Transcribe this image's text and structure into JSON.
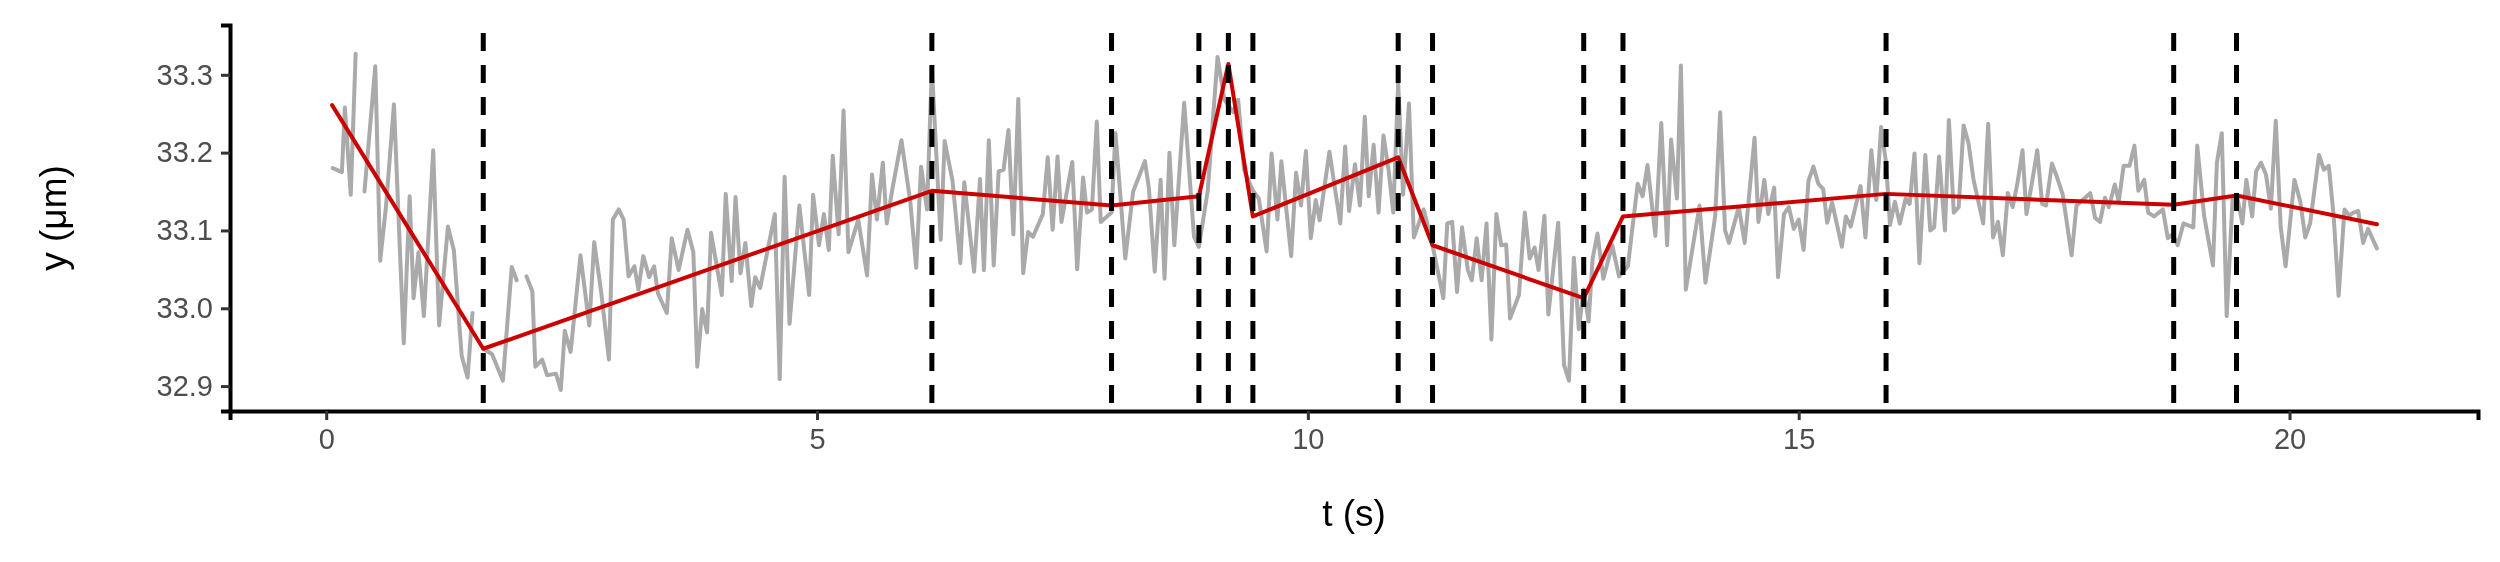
{
  "chart_data": {
    "type": "line",
    "xlabel": "t (s)",
    "ylabel": "y (μm)",
    "xlim": [
      -0.98,
      21.92
    ],
    "xticks": [
      0,
      5,
      10,
      15,
      20
    ],
    "ylim": [
      32.868,
      33.364
    ],
    "yticks": [
      {
        "value": 32.9,
        "label": "32.9"
      },
      {
        "value": 33.0,
        "label": "33.0"
      },
      {
        "value": 33.1,
        "label": "33.1"
      },
      {
        "value": 33.2,
        "label": "33.2"
      },
      {
        "value": 33.3,
        "label": "33.3"
      }
    ],
    "series": [
      {
        "color": "#aaaaaa",
        "x": [
          0.067,
          0.16,
          0.19,
          0.25,
          0.3,
          0.345,
          0.39,
          0.5,
          0.55,
          0.61,
          0.69,
          0.79,
          0.85,
          0.89,
          0.94,
          0.995,
          1.09,
          1.15,
          1.24,
          1.3,
          1.38,
          1.44,
          1.49,
          1.545,
          1.6,
          1.69,
          1.8,
          1.89,
          1.94,
          1.99,
          2.04,
          2.1,
          2.13,
          2.2,
          2.25,
          2.34,
          2.39,
          2.43,
          2.49,
          2.59,
          2.68,
          2.73,
          2.8,
          2.88,
          2.92,
          2.98,
          3.03,
          3.08,
          3.14,
          3.18,
          3.23,
          3.29,
          3.34,
          3.38,
          3.47,
          3.52,
          3.59,
          3.68,
          3.74,
          3.78,
          3.83,
          3.88,
          3.92,
          4.03,
          4.07,
          4.13,
          4.17,
          4.22,
          4.27,
          4.33,
          4.37,
          4.42,
          4.57,
          4.62,
          4.67,
          4.72,
          4.82,
          4.92,
          4.96,
          5.02,
          5.07,
          5.12,
          5.16,
          5.22,
          5.27,
          5.32,
          5.42,
          5.51,
          5.56,
          5.61,
          5.67,
          5.71,
          5.77,
          5.86,
          5.95,
          6.01,
          6.06,
          6.12,
          6.17,
          6.26,
          6.3,
          6.38,
          6.46,
          6.5,
          6.6,
          6.66,
          6.7,
          6.75,
          6.8,
          6.85,
          6.9,
          6.95,
          7.0,
          7.05,
          7.1,
          7.15,
          7.2,
          7.3,
          7.35,
          7.4,
          7.45,
          7.49,
          7.6,
          7.65,
          7.71,
          7.75,
          7.8,
          7.85,
          7.89,
          8.0,
          8.04,
          8.14,
          8.22,
          8.34,
          8.38,
          8.44,
          8.5,
          8.54,
          8.59,
          8.64,
          8.74,
          8.84,
          8.89,
          8.98,
          9.08,
          9.15,
          9.24,
          9.29,
          9.35,
          9.44,
          9.5,
          9.58,
          9.63,
          9.69,
          9.73,
          9.83,
          9.88,
          9.93,
          9.98,
          10.03,
          10.08,
          10.12,
          10.22,
          10.33,
          10.38,
          10.42,
          10.48,
          10.53,
          10.58,
          10.62,
          10.67,
          10.72,
          10.77,
          10.82,
          10.87,
          10.92,
          10.97,
          11.03,
          11.08,
          11.18,
          11.27,
          11.38,
          11.42,
          11.47,
          11.52,
          11.57,
          11.63,
          11.67,
          11.72,
          11.77,
          11.82,
          11.87,
          11.92,
          11.97,
          12.02,
          12.06,
          12.15,
          12.21,
          12.26,
          12.31,
          12.35,
          12.41,
          12.45,
          12.55,
          12.61,
          12.66,
          12.71,
          12.76,
          12.81,
          12.86,
          12.9,
          12.95,
          13.01,
          13.1,
          13.17,
          13.26,
          13.36,
          13.41,
          13.46,
          13.54,
          13.6,
          13.66,
          13.7,
          13.76,
          13.8,
          13.85,
          13.99,
          14.05,
          14.15,
          14.2,
          14.25,
          14.29,
          14.39,
          14.45,
          14.55,
          14.59,
          14.65,
          14.69,
          14.75,
          14.79,
          14.85,
          14.9,
          14.95,
          15.0,
          15.05,
          15.1,
          15.15,
          15.2,
          15.25,
          15.29,
          15.34,
          15.44,
          15.48,
          15.53,
          15.63,
          15.68,
          15.74,
          15.79,
          15.84,
          15.89,
          15.93,
          15.98,
          16.03,
          16.09,
          16.13,
          16.18,
          16.23,
          16.29,
          16.34,
          16.38,
          16.43,
          16.49,
          16.53,
          16.58,
          16.63,
          16.68,
          16.73,
          16.78,
          16.88,
          16.93,
          16.98,
          17.03,
          17.08,
          17.13,
          17.18,
          17.23,
          17.28,
          17.32,
          17.38,
          17.43,
          17.48,
          17.52,
          17.58,
          17.63,
          17.69,
          17.78,
          17.83,
          17.91,
          17.97,
          18.02,
          18.07,
          18.12,
          18.16,
          18.22,
          18.26,
          18.31,
          18.37,
          18.42,
          18.46,
          18.52,
          18.56,
          18.62,
          18.71,
          18.76,
          18.81,
          18.86,
          18.92,
          19.02,
          19.06,
          19.13,
          19.22,
          19.26,
          19.31,
          19.36,
          19.42,
          19.47,
          19.52,
          19.56,
          19.62,
          19.66,
          19.71,
          19.76,
          19.81,
          19.86,
          19.91,
          19.96,
          20.05,
          20.11,
          20.16,
          20.21,
          20.3,
          20.35,
          20.4,
          20.45,
          20.5,
          20.56,
          20.61,
          20.65,
          20.7,
          20.75,
          20.8,
          20.89
        ],
        "values": [
          33.18,
          33.175,
          33.258,
          33.146,
          33.327,
          null,
          33.15,
          33.311,
          33.061,
          33.132,
          33.262,
          32.955,
          33.144,
          33.013,
          33.072,
          32.99,
          33.203,
          32.978,
          33.105,
          33.075,
          32.939,
          32.911,
          32.994,
          null,
          32.948,
          32.941,
          32.907,
          33.053,
          33.036,
          null,
          33.041,
          33.022,
          32.925,
          32.934,
          32.914,
          32.916,
          32.895,
          32.971,
          32.944,
          33.068,
          32.978,
          33.085,
          33.022,
          32.934,
          33.114,
          33.127,
          33.114,
          33.041,
          33.054,
          33.024,
          33.067,
          33.04,
          33.054,
          33.019,
          32.994,
          33.09,
          33.049,
          33.101,
          33.072,
          32.925,
          32.999,
          32.969,
          33.097,
          33.017,
          33.147,
          33.035,
          33.143,
          33.045,
          33.084,
          33.003,
          33.04,
          33.026,
          33.121,
          32.909,
          33.169,
          32.98,
          33.132,
          33.017,
          33.146,
          33.081,
          33.121,
          33.075,
          33.196,
          33.095,
          33.254,
          33.072,
          33.114,
          33.042,
          33.172,
          33.114,
          33.187,
          33.109,
          33.155,
          33.216,
          33.137,
          33.052,
          33.182,
          33.127,
          33.309,
          33.088,
          33.215,
          33.164,
          33.058,
          33.162,
          33.047,
          33.166,
          33.049,
          33.216,
          33.055,
          33.176,
          33.178,
          33.229,
          33.095,
          33.269,
          33.045,
          33.098,
          33.092,
          33.121,
          33.194,
          33.101,
          33.195,
          33.111,
          33.188,
          33.05,
          33.168,
          33.123,
          33.127,
          33.24,
          33.111,
          33.123,
          33.225,
          33.064,
          33.15,
          33.189,
          33.155,
          33.047,
          33.165,
          33.038,
          33.2,
          33.081,
          33.264,
          33.092,
          33.079,
          33.151,
          33.323,
          33.268,
          33.252,
          33.268,
          33.178,
          33.151,
          33.141,
          33.073,
          33.199,
          33.114,
          33.189,
          33.067,
          33.174,
          33.132,
          33.202,
          33.09,
          33.139,
          33.113,
          33.201,
          33.109,
          33.208,
          33.125,
          33.185,
          33.132,
          33.246,
          33.144,
          33.21,
          33.123,
          33.222,
          33.18,
          33.123,
          33.289,
          33.146,
          33.263,
          33.091,
          33.127,
          33.081,
          33.013,
          33.109,
          33.111,
          33.021,
          33.104,
          33.049,
          33.036,
          33.09,
          33.036,
          33.109,
          32.96,
          33.121,
          33.081,
          33.082,
          32.987,
          33.017,
          33.123,
          33.064,
          33.078,
          33.049,
          33.119,
          32.992,
          33.11,
          32.927,
          32.907,
          33.065,
          32.973,
          33.024,
          32.983,
          33.063,
          33.096,
          33.038,
          33.081,
          33.041,
          33.054,
          33.16,
          33.144,
          33.184,
          33.093,
          33.238,
          33.081,
          33.217,
          33.141,
          33.312,
          33.024,
          33.132,
          33.033,
          33.119,
          33.252,
          33.1,
          33.084,
          33.13,
          33.084,
          33.219,
          33.111,
          33.165,
          33.121,
          33.155,
          33.04,
          33.121,
          33.13,
          33.102,
          33.114,
          33.075,
          33.164,
          33.182,
          33.16,
          33.153,
          33.11,
          33.136,
          33.079,
          33.118,
          33.105,
          33.157,
          33.091,
          33.203,
          33.139,
          33.233,
          33.187,
          33.107,
          33.137,
          33.109,
          33.141,
          33.134,
          33.199,
          33.058,
          33.197,
          33.1,
          33.104,
          33.195,
          33.1,
          33.242,
          33.123,
          33.13,
          33.235,
          33.212,
          33.166,
          33.109,
          33.237,
          33.091,
          33.111,
          33.068,
          33.148,
          33.13,
          33.162,
          33.203,
          33.121,
          33.164,
          33.203,
          33.134,
          33.132,
          33.186,
          33.169,
          33.146,
          33.068,
          33.132,
          33.141,
          33.148,
          33.116,
          33.111,
          33.142,
          33.13,
          33.159,
          33.137,
          33.183,
          33.183,
          33.209,
          33.151,
          33.165,
          33.123,
          33.118,
          33.127,
          33.09,
          33.095,
          33.081,
          33.109,
          33.104,
          33.209,
          33.119,
          33.055,
          33.187,
          33.225,
          32.99,
          33.141,
          33.141,
          33.109,
          33.165,
          33.118,
          33.176,
          33.187,
          33.172,
          33.128,
          33.241,
          33.105,
          33.054,
          33.165,
          33.137,
          33.091,
          33.109,
          33.197,
          33.178,
          33.183,
          33.118,
          33.016,
          33.127,
          33.119,
          33.123,
          33.125,
          33.084,
          33.102,
          33.077
        ]
      },
      {
        "color": "#cc0000",
        "x": [
          0.06,
          1.6,
          6.17,
          8.0,
          8.89,
          9.19,
          9.44,
          10.92,
          11.27,
          12.81,
          13.21,
          15.89,
          18.82,
          19.46,
          20.89
        ],
        "values": [
          33.261,
          32.948,
          33.151,
          33.132,
          33.144,
          33.314,
          33.118,
          33.194,
          33.081,
          33.013,
          33.118,
          33.147,
          33.133,
          33.145,
          33.108
        ]
      }
    ],
    "ref_lines": [
      {
        "axis": "x",
        "value": 1.6,
        "color": "#000000",
        "line_style": "dashed"
      },
      {
        "axis": "x",
        "value": 6.17,
        "color": "#000000",
        "line_style": "dashed"
      },
      {
        "axis": "x",
        "value": 8.0,
        "color": "#000000",
        "line_style": "dashed"
      },
      {
        "axis": "x",
        "value": 8.89,
        "color": "#000000",
        "line_style": "dashed"
      },
      {
        "axis": "x",
        "value": 9.19,
        "color": "#000000",
        "line_style": "dashed"
      },
      {
        "axis": "x",
        "value": 9.44,
        "color": "#000000",
        "line_style": "dashed"
      },
      {
        "axis": "x",
        "value": 10.92,
        "color": "#000000",
        "line_style": "dashed"
      },
      {
        "axis": "x",
        "value": 11.27,
        "color": "#000000",
        "line_style": "dashed"
      },
      {
        "axis": "x",
        "value": 12.81,
        "color": "#000000",
        "line_style": "dashed"
      },
      {
        "axis": "x",
        "value": 13.21,
        "color": "#000000",
        "line_style": "dashed"
      },
      {
        "axis": "x",
        "value": 15.89,
        "color": "#000000",
        "line_style": "dashed"
      },
      {
        "axis": "x",
        "value": 18.82,
        "color": "#000000",
        "line_style": "dashed"
      },
      {
        "axis": "x",
        "value": 19.46,
        "color": "#000000",
        "line_style": "dashed"
      }
    ]
  }
}
